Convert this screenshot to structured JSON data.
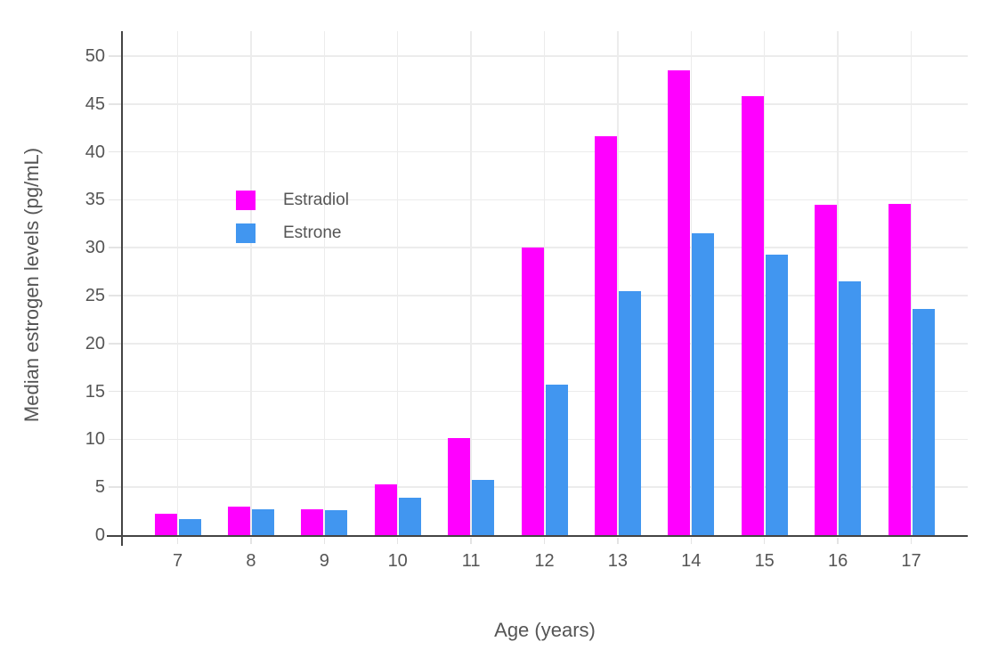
{
  "chart_data": {
    "type": "bar",
    "title": "",
    "xlabel": "Age (years)",
    "ylabel": "Median estrogen levels (pg/mL)",
    "categories": [
      "7",
      "8",
      "9",
      "10",
      "11",
      "12",
      "13",
      "14",
      "15",
      "16",
      "17"
    ],
    "series": [
      {
        "name": "Estradiol",
        "color": "#FF00FF",
        "values": [
          2.2,
          3.0,
          2.7,
          5.3,
          10.1,
          30.0,
          41.6,
          48.5,
          45.8,
          34.5,
          34.6
        ]
      },
      {
        "name": "Estrone",
        "color": "#4196F0",
        "values": [
          1.7,
          2.7,
          2.6,
          3.9,
          5.8,
          15.7,
          25.5,
          31.5,
          29.3,
          26.5,
          23.6
        ]
      }
    ],
    "yticks": [
      0,
      5,
      10,
      15,
      20,
      25,
      30,
      35,
      40,
      45,
      50
    ],
    "ylim": [
      0,
      52.6
    ],
    "grid": true,
    "legend_position": "inside-top-left",
    "colors": {
      "background": "#FFFFFF",
      "gridline": "#ECECEC",
      "axis_line": "#444444",
      "tick_mark": "#E4E4E4",
      "text": "#555555"
    }
  }
}
